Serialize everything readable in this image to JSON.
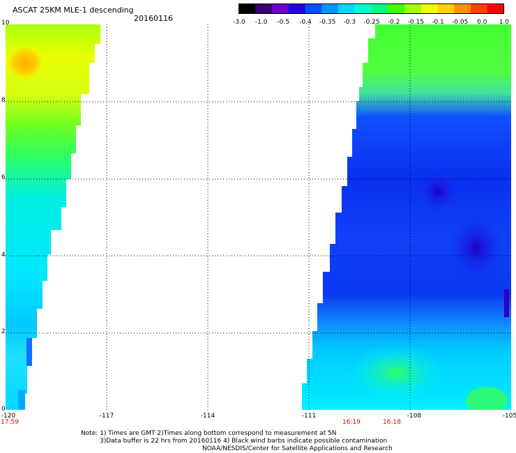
{
  "header": {
    "title": "ASCAT 25KM MLE-1 descending",
    "date": "20160116"
  },
  "colorbar": {
    "labels": [
      "-3.0",
      "-1.0",
      "-0.5",
      "-0.4",
      "-0.35",
      "-0.3",
      "-0.25",
      "-0.2",
      "-0.15",
      "-0.1",
      "-0.05",
      "0.0",
      "1.0"
    ],
    "colors": [
      "#000000",
      "#3a0070",
      "#6a00c8",
      "#2000e0",
      "#0050ff",
      "#0096ff",
      "#00d8ff",
      "#00ffd0",
      "#00ff80",
      "#40ff00",
      "#a0ff00",
      "#f0ff00",
      "#ffd000",
      "#ff9000",
      "#ff4000",
      "#ff0000"
    ]
  },
  "axes": {
    "y_ticks": [
      "0",
      "2",
      "4",
      "6",
      "8",
      "10"
    ],
    "x_ticks": [
      "-120",
      "-117",
      "-114",
      "-111",
      "-108",
      "-105"
    ],
    "lon_range": [
      -120,
      -105
    ],
    "lat_range": [
      0,
      10
    ],
    "grid": "dotted"
  },
  "swaths": [
    {
      "name": "west-swath",
      "time": "17:59"
    },
    {
      "name": "east-swath",
      "times": [
        "16:19",
        "16:18"
      ]
    }
  ],
  "footer": {
    "line1": "Note: 1) Times are GMT 2)Times along bottom correspond to measurement at 5N",
    "line2": "3)Data buffer is 22 hrs from 20160116 4) Black wind barbs indicate possible contamination",
    "line3": "NOAA/NESDIS/Center for Satellite Applications and Research"
  }
}
